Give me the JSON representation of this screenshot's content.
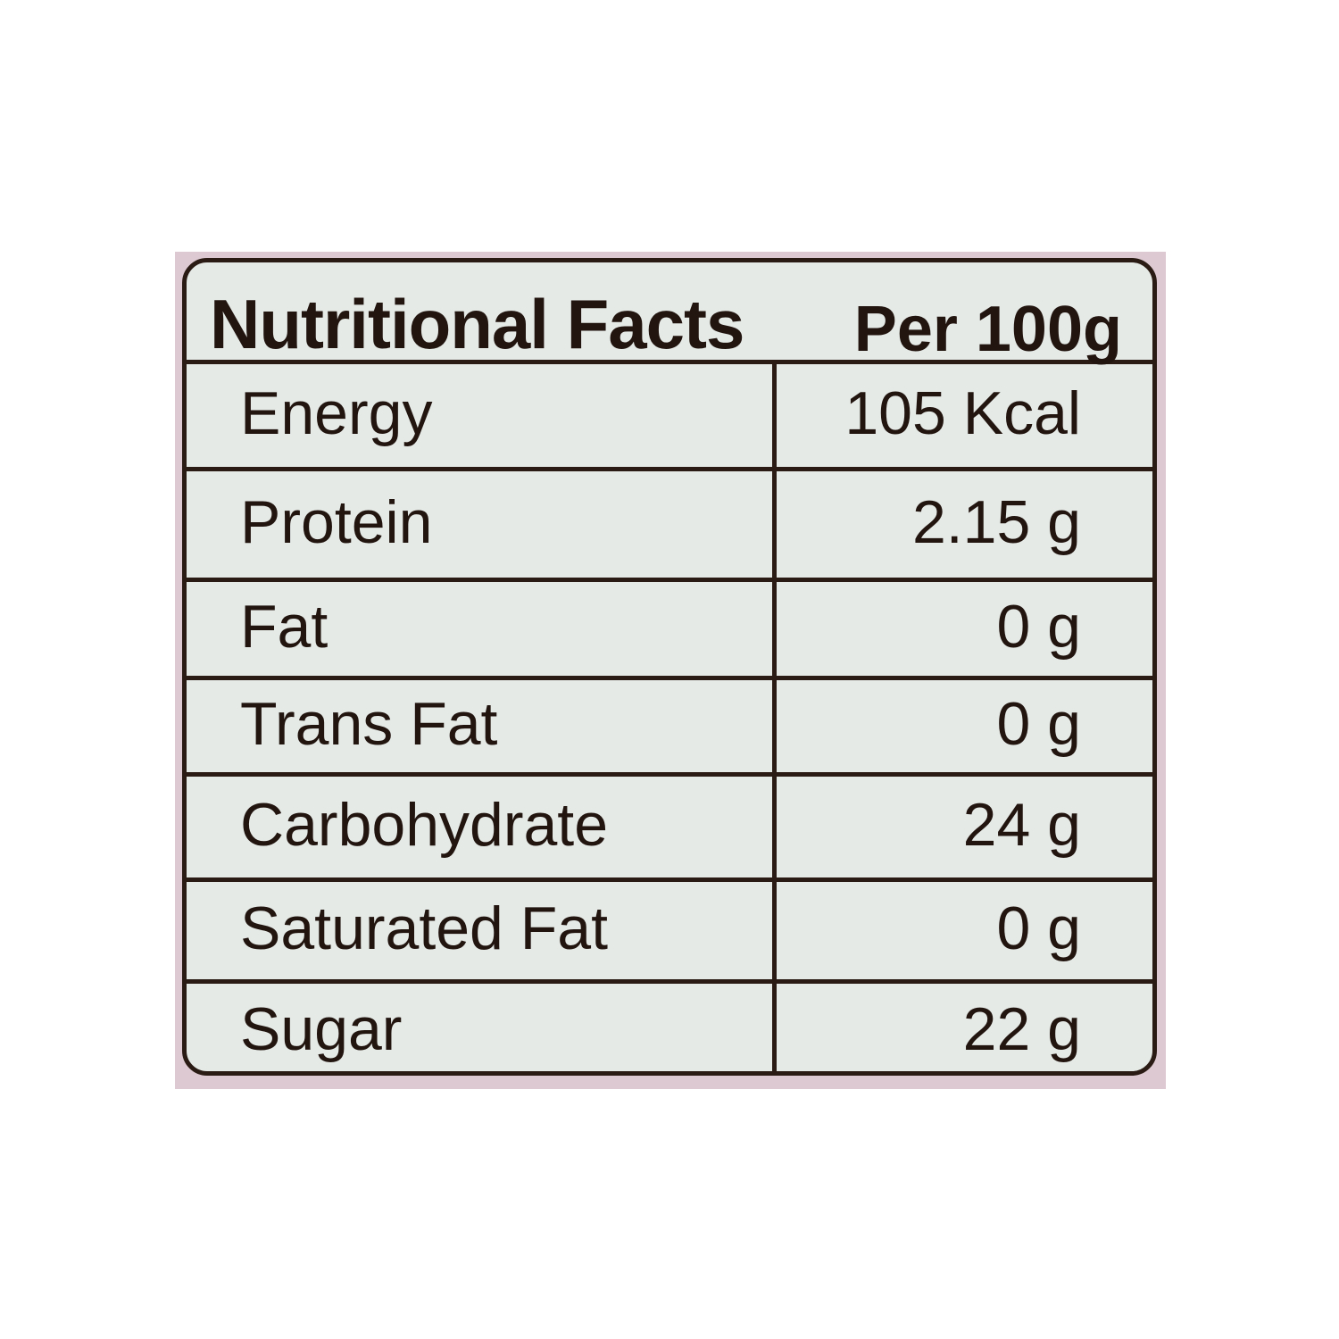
{
  "table": {
    "title": "Nutritional Facts",
    "per": "Per 100g",
    "rows": [
      {
        "name": "Energy",
        "value": "105 Kcal"
      },
      {
        "name": "Protein",
        "value": "2.15 g"
      },
      {
        "name": "Fat",
        "value": "0 g"
      },
      {
        "name": "Trans Fat",
        "value": "0 g"
      },
      {
        "name": "Carbohydrate",
        "value": "24 g"
      },
      {
        "name": "Saturated Fat",
        "value": "0 g"
      },
      {
        "name": "Sugar",
        "value": "22 g"
      }
    ]
  },
  "colors": {
    "ink": "#2b1b15",
    "panel": "#e5eae7",
    "backing": "#dcc9d1"
  }
}
